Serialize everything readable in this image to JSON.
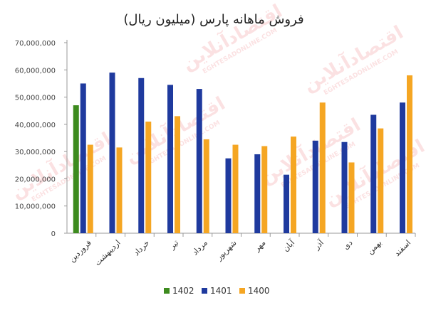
{
  "chart_data": {
    "type": "bar",
    "title": "فروش ماهانه پارس (میلیون ریال)",
    "xlabel": "",
    "ylabel": "",
    "ylim": [
      0,
      70000000
    ],
    "yticks": [
      {
        "value": 0,
        "label": "0"
      },
      {
        "value": 10000000,
        "label": "10,000,000"
      },
      {
        "value": 20000000,
        "label": "20,000,000"
      },
      {
        "value": 30000000,
        "label": "30,000,000"
      },
      {
        "value": 40000000,
        "label": "40,000,000"
      },
      {
        "value": 50000000,
        "label": "50,000,000"
      },
      {
        "value": 60000000,
        "label": "60,000,000"
      },
      {
        "value": 70000000,
        "label": "70,000,000"
      }
    ],
    "categories": [
      "فروردین",
      "اردیبهشت",
      "خرداد",
      "تیر",
      "مرداد",
      "شهریور",
      "مهر",
      "آبان",
      "آذر",
      "دی",
      "بهمن",
      "اسفند"
    ],
    "series": [
      {
        "name": "1402",
        "color": "#3d8b1e",
        "values": [
          47000000,
          null,
          null,
          null,
          null,
          null,
          null,
          null,
          null,
          null,
          null,
          null
        ]
      },
      {
        "name": "1401",
        "color": "#1f3a9e",
        "values": [
          55000000,
          59000000,
          57000000,
          54500000,
          53000000,
          27500000,
          29000000,
          21500000,
          34000000,
          33500000,
          43500000,
          48000000
        ]
      },
      {
        "name": "1400",
        "color": "#f5a623",
        "values": [
          32500000,
          31500000,
          41000000,
          43000000,
          34500000,
          32500000,
          32000000,
          35500000,
          48000000,
          26000000,
          38500000,
          58000000
        ]
      }
    ],
    "grid": false,
    "legend_position": "bottom"
  },
  "watermark": {
    "text_fa": "اقتصادآنلاین",
    "text_en": "EGHTESADONLINE.COM",
    "color": "#e2242b"
  }
}
